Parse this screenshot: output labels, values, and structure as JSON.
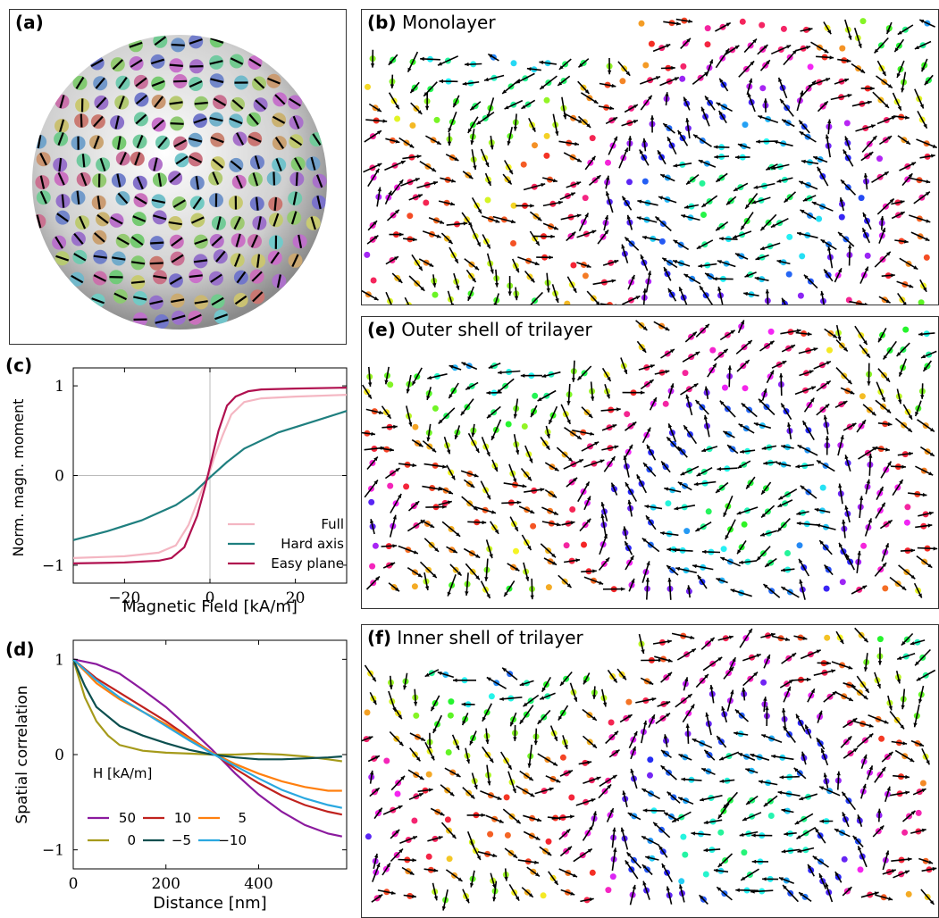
{
  "panels": {
    "a": {
      "label": "(a)"
    },
    "b": {
      "label": "(b)",
      "title": "Monolayer"
    },
    "e": {
      "label": "(e)",
      "title": "Outer shell of trilayer"
    },
    "f": {
      "label": "(f)",
      "title": "Inner shell of trilayer"
    }
  },
  "chart_data": [
    {
      "panel": "(c)",
      "type": "line",
      "xlabel": "Magnetic Field [kA/m]",
      "ylabel": "Norm. magn. moment",
      "xlim": [
        -32,
        32
      ],
      "ylim": [
        -1.2,
        1.2
      ],
      "xticks": [
        -20,
        0,
        20
      ],
      "xtick_labels": [
        "−20",
        "0",
        "20"
      ],
      "yticks": [
        -1,
        0,
        1
      ],
      "ytick_labels": [
        "−1",
        "0",
        "1"
      ],
      "grid": "zero lines",
      "legend_position": "bottom-right",
      "series": [
        {
          "name": "Full",
          "color": "#f4b6c2",
          "x": [
            -32,
            -20,
            -12,
            -8,
            -5,
            -3,
            -1,
            0,
            1,
            3,
            5,
            8,
            12,
            20,
            32
          ],
          "y": [
            -0.92,
            -0.9,
            -0.86,
            -0.78,
            -0.55,
            -0.3,
            -0.05,
            0.05,
            0.2,
            0.45,
            0.68,
            0.82,
            0.86,
            0.88,
            0.9
          ]
        },
        {
          "name": "Hard axis",
          "color": "#1f7f7f",
          "x": [
            -32,
            -24,
            -16,
            -8,
            -4,
            0,
            4,
            8,
            16,
            24,
            32
          ],
          "y": [
            -0.72,
            -0.62,
            -0.5,
            -0.33,
            -0.2,
            -0.02,
            0.15,
            0.3,
            0.48,
            0.6,
            0.72
          ]
        },
        {
          "name": "Easy plane",
          "color": "#b0104f",
          "x": [
            -32,
            -20,
            -12,
            -9,
            -6,
            -3,
            -1,
            0,
            2,
            4,
            6,
            9,
            12,
            20,
            32
          ],
          "y": [
            -0.98,
            -0.97,
            -0.95,
            -0.92,
            -0.8,
            -0.45,
            -0.1,
            0.1,
            0.5,
            0.78,
            0.88,
            0.94,
            0.96,
            0.97,
            0.98
          ]
        }
      ]
    },
    {
      "panel": "(d)",
      "type": "line",
      "xlabel": "Distance [nm]",
      "ylabel": "Spatial correlation",
      "xlim": [
        0,
        590
      ],
      "ylim": [
        -1.2,
        1.2
      ],
      "xticks": [
        0,
        200,
        400
      ],
      "xtick_labels": [
        "0",
        "200",
        "400"
      ],
      "yticks": [
        -1,
        0,
        1
      ],
      "ytick_labels": [
        "−1",
        "0",
        "1"
      ],
      "legend_title": "H [kA/m]",
      "legend_position": "bottom-left",
      "series": [
        {
          "name": "50",
          "color": "#8b1a9e",
          "x": [
            0,
            50,
            100,
            150,
            200,
            250,
            300,
            350,
            400,
            450,
            500,
            550,
            580
          ],
          "y": [
            1.0,
            0.95,
            0.85,
            0.68,
            0.5,
            0.28,
            0.05,
            -0.2,
            -0.42,
            -0.6,
            -0.74,
            -0.83,
            -0.86
          ]
        },
        {
          "name": "10",
          "color": "#c0221e",
          "x": [
            0,
            50,
            100,
            150,
            200,
            250,
            300,
            350,
            400,
            450,
            500,
            550,
            580
          ],
          "y": [
            1.0,
            0.8,
            0.65,
            0.5,
            0.35,
            0.18,
            0.02,
            -0.15,
            -0.3,
            -0.43,
            -0.53,
            -0.6,
            -0.63
          ]
        },
        {
          "name": "5",
          "color": "#ff7f0e",
          "x": [
            0,
            50,
            100,
            150,
            200,
            250,
            300,
            350,
            400,
            450,
            500,
            550,
            580
          ],
          "y": [
            1.0,
            0.75,
            0.58,
            0.45,
            0.32,
            0.17,
            0.02,
            -0.1,
            -0.2,
            -0.28,
            -0.34,
            -0.38,
            -0.38
          ]
        },
        {
          "name": "0",
          "color": "#a59a1a",
          "x": [
            0,
            25,
            50,
            75,
            100,
            150,
            200,
            250,
            300,
            350,
            400,
            450,
            500,
            550,
            580
          ],
          "y": [
            1.0,
            0.6,
            0.35,
            0.2,
            0.1,
            0.04,
            0.02,
            0.01,
            0.0,
            0.0,
            0.01,
            0.0,
            -0.02,
            -0.05,
            -0.07
          ]
        },
        {
          "name": "−5",
          "color": "#0c4f4f",
          "x": [
            0,
            25,
            50,
            100,
            150,
            200,
            250,
            300,
            350,
            400,
            450,
            500,
            550,
            580
          ],
          "y": [
            1.0,
            0.72,
            0.5,
            0.3,
            0.2,
            0.12,
            0.05,
            0.0,
            -0.03,
            -0.05,
            -0.05,
            -0.04,
            -0.03,
            -0.02
          ]
        },
        {
          "name": "−10",
          "color": "#2aa8e0",
          "x": [
            0,
            50,
            100,
            150,
            200,
            250,
            300,
            350,
            400,
            450,
            500,
            550,
            580
          ],
          "y": [
            1.0,
            0.78,
            0.6,
            0.45,
            0.3,
            0.15,
            0.01,
            -0.12,
            -0.25,
            -0.37,
            -0.46,
            -0.53,
            -0.56
          ]
        }
      ]
    }
  ]
}
